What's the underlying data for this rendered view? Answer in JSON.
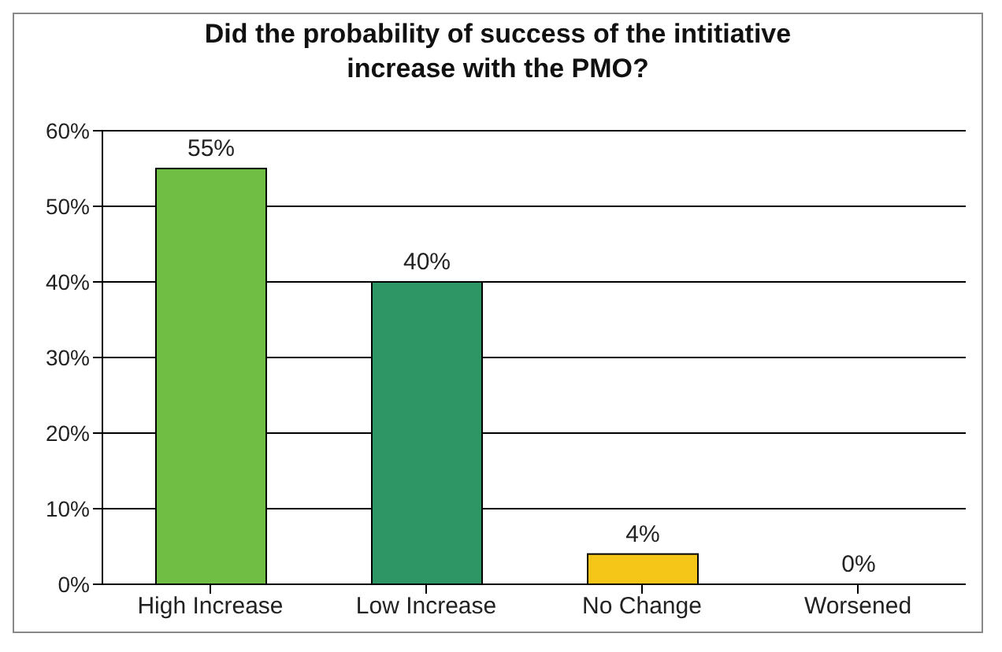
{
  "chart_data": {
    "type": "bar",
    "title": "Did the probability of success of the intitiative increase with the PMO?",
    "categories": [
      "High Increase",
      "Low Increase",
      "No Change",
      "Worsened"
    ],
    "values": [
      55,
      40,
      4,
      0
    ],
    "colors": [
      "#70bf44",
      "#2e9664",
      "#f5c518",
      "#c0c0c0"
    ],
    "value_labels": [
      "55%",
      "40%",
      "4%",
      "0%"
    ],
    "ylim": [
      0,
      60
    ],
    "yticks": [
      {
        "value": 0,
        "label": "0%"
      },
      {
        "value": 10,
        "label": "10%"
      },
      {
        "value": 20,
        "label": "20%"
      },
      {
        "value": 30,
        "label": "30%"
      },
      {
        "value": 40,
        "label": "40%"
      },
      {
        "value": 50,
        "label": "50%"
      },
      {
        "value": 60,
        "label": "60%"
      }
    ],
    "grid": "y",
    "legend": false
  }
}
